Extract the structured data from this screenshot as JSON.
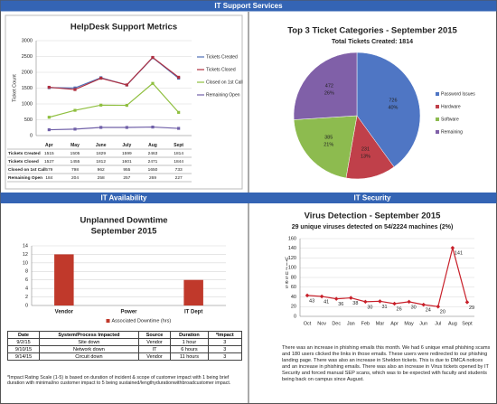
{
  "headers": {
    "main": "IT Support Services",
    "availability": "IT Availability",
    "security": "IT Security"
  },
  "chart_data": [
    {
      "type": "line",
      "title": "HelpDesk Support Metrics",
      "ylabel": "Ticket Count",
      "categories": [
        "Apr",
        "May",
        "June",
        "July",
        "Aug",
        "Sept"
      ],
      "series": [
        {
          "name": "Tickets Created",
          "color": "#4f6fb5",
          "values": [
            1515,
            1505,
            1829,
            1599,
            2463,
            1814
          ]
        },
        {
          "name": "Tickets Closed",
          "color": "#b03040",
          "values": [
            1527,
            1455,
            1812,
            1601,
            2471,
            1844
          ]
        },
        {
          "name": "Closed on 1st Call",
          "color": "#8fbf3f",
          "values": [
            579,
            798,
            962,
            955,
            1650,
            733
          ]
        },
        {
          "name": "Remaining Open",
          "color": "#7060a8",
          "values": [
            184,
            204,
            258,
            257,
            269,
            227
          ]
        }
      ],
      "ylim": [
        0,
        3000
      ],
      "yticks": [
        0,
        500,
        1000,
        1500,
        2000,
        2500,
        3000
      ],
      "grid": true,
      "legend": "right",
      "data_table": true
    },
    {
      "type": "pie",
      "title": "Top 3 Ticket Categories - September 2015",
      "subtitle": "Total Tickets Created: 1814",
      "categories": [
        "Password Issues",
        "Hardware",
        "Software",
        "Remaining"
      ],
      "values": [
        726,
        231,
        385,
        472
      ],
      "percent_labels": [
        "40%",
        "13%",
        "21%",
        "26%"
      ],
      "colors": [
        "#4f76c4",
        "#c0404a",
        "#8dbb4f",
        "#8060a8"
      ],
      "legend": "right"
    },
    {
      "type": "bar",
      "title": "Unplanned Downtime",
      "subtitle": "September 2015",
      "categories": [
        "Vendor",
        "Power",
        "IT Dept"
      ],
      "series": [
        {
          "name": "Associated Downtime (hrs)",
          "color": "#c0392b",
          "values": [
            12,
            0,
            6
          ]
        }
      ],
      "ylim": [
        0,
        14
      ],
      "yticks": [
        0,
        2,
        4,
        6,
        8,
        10,
        12,
        14
      ],
      "grid": true,
      "legend": "bottom"
    },
    {
      "type": "line",
      "title": "Virus Detection - September 2015",
      "subtitle": "29 unique viruses detected on 54/2224 machines (2%)",
      "ylabel": "Viruses",
      "categories": [
        "Oct",
        "Nov",
        "Dec",
        "Jan",
        "Feb",
        "Mar",
        "Apr",
        "May",
        "Jun",
        "Jul",
        "Aug",
        "Sept"
      ],
      "series": [
        {
          "color": "#c8202a",
          "values": [
            43,
            41,
            36,
            38,
            30,
            31,
            26,
            30,
            24,
            20,
            141,
            29
          ]
        }
      ],
      "ylim": [
        0,
        160
      ],
      "yticks": [
        0,
        20,
        40,
        60,
        80,
        100,
        120,
        140,
        160
      ],
      "grid": true,
      "data_labels": true
    }
  ],
  "downtime_table": {
    "columns": [
      "Date",
      "System/Process Impacted",
      "Source",
      "Duration",
      "*Impact"
    ],
    "rows": [
      [
        "9/2/15",
        "Site down",
        "Vendor",
        "1 hour",
        "3"
      ],
      [
        "9/10/15",
        "Network down",
        "IT",
        "6 hours",
        "3"
      ],
      [
        "9/14/15",
        "Circuit down",
        "Vendor",
        "11 hours",
        "3"
      ]
    ],
    "footnote": "*Impact Rating Scale (1-5) is based on duration of incident & scope of customer impact with 1 being brief duration with minimal/no customer impact to 5 being sustained/lengthydurationwithbroadcustomer impact."
  },
  "security_note": "There was an increase in phishing emails this month. We had 6 unique email phishing scams and 180 users clicked the links in those emails. These users were redirected to our phishing landing page. There was also an increase in Sheldon tickets. This is due to DMCA notices and an increase in phishing emails. There was also an increase in Virus tickets opened by IT Security and forced manual SEP scans, which was to be expected with faculty and students being back on campus since August."
}
